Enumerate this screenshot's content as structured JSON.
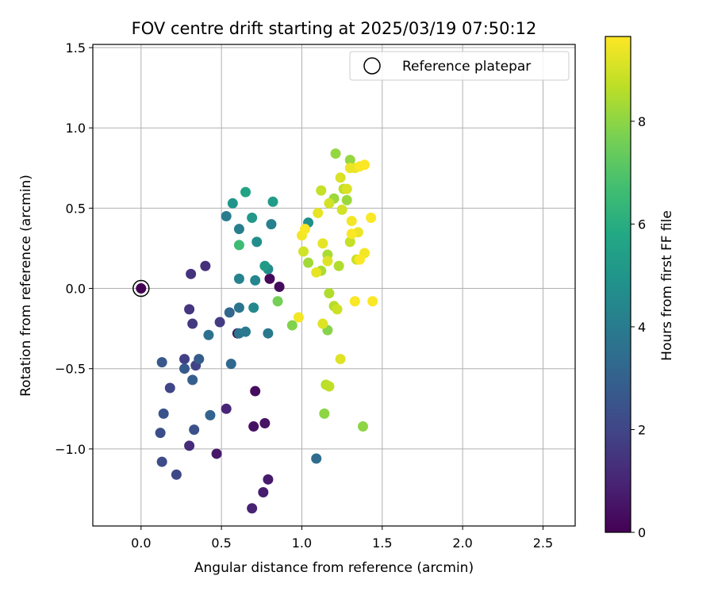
{
  "chart_data": {
    "type": "scatter",
    "title": "FOV centre drift starting at 2025/03/19 07:50:12",
    "xlabel": "Angular distance from reference (arcmin)",
    "ylabel": "Rotation from reference (arcmin)",
    "xlim": [
      -0.3,
      2.7
    ],
    "ylim": [
      -1.48,
      1.52
    ],
    "xticks": [
      0.0,
      0.5,
      1.0,
      1.5,
      2.0,
      2.5
    ],
    "xtick_labels": [
      "0.0",
      "0.5",
      "1.0",
      "1.5",
      "2.0",
      "2.5"
    ],
    "yticks": [
      -1.0,
      -0.5,
      0.0,
      0.5,
      1.0,
      1.5
    ],
    "ytick_labels": [
      "−1.0",
      "−0.5",
      "0.0",
      "0.5",
      "1.0",
      "1.5"
    ],
    "grid": true,
    "colormap": "viridis",
    "colorbar": {
      "label": "Hours from first FF file",
      "range": [
        0,
        9.65
      ],
      "ticks": [
        0,
        2,
        4,
        6,
        8
      ],
      "tick_labels": [
        "0",
        "2",
        "4",
        "6",
        "8"
      ]
    },
    "legend": {
      "position": "top-right",
      "entries": [
        {
          "label": "Reference platepar",
          "marker": "open-circle"
        }
      ]
    },
    "reference_point": {
      "x": 0.0,
      "y": 0.0
    },
    "points": [
      {
        "x": 0.8,
        "y": 0.06,
        "c": 0.2
      },
      {
        "x": 0.86,
        "y": 0.01,
        "c": 0.3
      },
      {
        "x": 0.6,
        "y": -0.28,
        "c": 0.4
      },
      {
        "x": 0.71,
        "y": -0.64,
        "c": 0.3
      },
      {
        "x": 0.7,
        "y": -0.86,
        "c": 0.4
      },
      {
        "x": 0.77,
        "y": -0.84,
        "c": 0.5
      },
      {
        "x": 0.47,
        "y": -1.03,
        "c": 0.6
      },
      {
        "x": 0.79,
        "y": -1.19,
        "c": 0.7
      },
      {
        "x": 0.76,
        "y": -1.27,
        "c": 0.8
      },
      {
        "x": 0.69,
        "y": -1.37,
        "c": 0.9
      },
      {
        "x": 0.53,
        "y": -0.75,
        "c": 1.0
      },
      {
        "x": 0.3,
        "y": -0.98,
        "c": 1.2
      },
      {
        "x": 0.4,
        "y": 0.14,
        "c": 1.3
      },
      {
        "x": 0.31,
        "y": 0.09,
        "c": 1.4
      },
      {
        "x": 0.3,
        "y": -0.13,
        "c": 1.5
      },
      {
        "x": 0.32,
        "y": -0.22,
        "c": 1.6
      },
      {
        "x": 0.49,
        "y": -0.21,
        "c": 1.7
      },
      {
        "x": 0.27,
        "y": -0.44,
        "c": 1.8
      },
      {
        "x": 0.34,
        "y": -0.48,
        "c": 1.9
      },
      {
        "x": 0.18,
        "y": -0.62,
        "c": 2.0
      },
      {
        "x": 0.22,
        "y": -1.16,
        "c": 2.1
      },
      {
        "x": 0.13,
        "y": -1.08,
        "c": 2.2
      },
      {
        "x": 0.12,
        "y": -0.9,
        "c": 2.3
      },
      {
        "x": 0.33,
        "y": -0.88,
        "c": 2.4
      },
      {
        "x": 0.14,
        "y": -0.78,
        "c": 2.5
      },
      {
        "x": 0.13,
        "y": -0.46,
        "c": 2.6
      },
      {
        "x": 0.27,
        "y": -0.5,
        "c": 2.7
      },
      {
        "x": 0.36,
        "y": -0.44,
        "c": 2.8
      },
      {
        "x": 0.32,
        "y": -0.57,
        "c": 2.9
      },
      {
        "x": 0.43,
        "y": -0.79,
        "c": 3.1
      },
      {
        "x": 0.55,
        "y": -0.15,
        "c": 3.2
      },
      {
        "x": 0.56,
        "y": -0.47,
        "c": 3.3
      },
      {
        "x": 1.09,
        "y": -1.06,
        "c": 3.4
      },
      {
        "x": 0.42,
        "y": -0.29,
        "c": 3.6
      },
      {
        "x": 0.61,
        "y": -0.12,
        "c": 3.7
      },
      {
        "x": 0.61,
        "y": -0.28,
        "c": 3.8
      },
      {
        "x": 0.65,
        "y": -0.27,
        "c": 3.9
      },
      {
        "x": 0.79,
        "y": -0.28,
        "c": 3.9
      },
      {
        "x": 0.53,
        "y": 0.45,
        "c": 4.0
      },
      {
        "x": 0.61,
        "y": 0.37,
        "c": 4.1
      },
      {
        "x": 0.81,
        "y": 0.4,
        "c": 4.2
      },
      {
        "x": 0.61,
        "y": 0.06,
        "c": 4.3
      },
      {
        "x": 0.71,
        "y": 0.05,
        "c": 4.4
      },
      {
        "x": 0.7,
        "y": -0.12,
        "c": 4.5
      },
      {
        "x": 0.79,
        "y": 0.12,
        "c": 4.6
      },
      {
        "x": 0.72,
        "y": 0.29,
        "c": 4.7
      },
      {
        "x": 1.04,
        "y": 0.41,
        "c": 4.8
      },
      {
        "x": 0.57,
        "y": 0.53,
        "c": 5.0
      },
      {
        "x": 0.69,
        "y": 0.44,
        "c": 5.1
      },
      {
        "x": 0.77,
        "y": 0.14,
        "c": 5.2
      },
      {
        "x": 0.82,
        "y": 0.54,
        "c": 5.3
      },
      {
        "x": 0.65,
        "y": 0.6,
        "c": 5.6
      },
      {
        "x": 0.61,
        "y": 0.27,
        "c": 6.6
      },
      {
        "x": 0.85,
        "y": -0.08,
        "c": 7.6
      },
      {
        "x": 0.94,
        "y": -0.23,
        "c": 7.8
      },
      {
        "x": 1.16,
        "y": -0.26,
        "c": 7.9
      },
      {
        "x": 1.14,
        "y": -0.78,
        "c": 8.0
      },
      {
        "x": 1.38,
        "y": -0.86,
        "c": 8.0
      },
      {
        "x": 1.21,
        "y": 0.84,
        "c": 8.1
      },
      {
        "x": 1.3,
        "y": 0.8,
        "c": 8.1
      },
      {
        "x": 1.2,
        "y": 0.56,
        "c": 8.2
      },
      {
        "x": 1.28,
        "y": 0.55,
        "c": 8.2
      },
      {
        "x": 1.04,
        "y": 0.16,
        "c": 8.3
      },
      {
        "x": 1.12,
        "y": 0.11,
        "c": 8.4
      },
      {
        "x": 1.16,
        "y": 0.21,
        "c": 8.4
      },
      {
        "x": 1.23,
        "y": 0.14,
        "c": 8.5
      },
      {
        "x": 1.17,
        "y": -0.03,
        "c": 8.5
      },
      {
        "x": 1.2,
        "y": -0.11,
        "c": 8.6
      },
      {
        "x": 1.15,
        "y": -0.6,
        "c": 8.6
      },
      {
        "x": 1.17,
        "y": -0.61,
        "c": 8.7
      },
      {
        "x": 1.26,
        "y": 0.62,
        "c": 8.7
      },
      {
        "x": 1.12,
        "y": 0.61,
        "c": 8.8
      },
      {
        "x": 1.3,
        "y": 0.29,
        "c": 8.8
      },
      {
        "x": 1.34,
        "y": 0.18,
        "c": 8.9
      },
      {
        "x": 1.22,
        "y": -0.13,
        "c": 8.9
      },
      {
        "x": 1.01,
        "y": 0.23,
        "c": 9.0
      },
      {
        "x": 1.17,
        "y": 0.53,
        "c": 9.0
      },
      {
        "x": 1.25,
        "y": 0.49,
        "c": 9.0
      },
      {
        "x": 1.24,
        "y": 0.69,
        "c": 9.1
      },
      {
        "x": 1.28,
        "y": 0.62,
        "c": 9.1
      },
      {
        "x": 1.16,
        "y": 0.17,
        "c": 9.2
      },
      {
        "x": 1.13,
        "y": -0.22,
        "c": 9.2
      },
      {
        "x": 1.24,
        "y": -0.44,
        "c": 9.2
      },
      {
        "x": 1.09,
        "y": 0.1,
        "c": 9.3
      },
      {
        "x": 1.1,
        "y": 0.47,
        "c": 9.3
      },
      {
        "x": 1.13,
        "y": 0.28,
        "c": 9.3
      },
      {
        "x": 1.3,
        "y": 0.75,
        "c": 9.4
      },
      {
        "x": 1.33,
        "y": 0.75,
        "c": 9.4
      },
      {
        "x": 1.35,
        "y": 0.35,
        "c": 9.4
      },
      {
        "x": 1.39,
        "y": 0.22,
        "c": 9.5
      },
      {
        "x": 1.0,
        "y": 0.33,
        "c": 9.5
      },
      {
        "x": 0.98,
        "y": -0.18,
        "c": 9.5
      },
      {
        "x": 1.31,
        "y": 0.42,
        "c": 9.5
      },
      {
        "x": 1.31,
        "y": 0.34,
        "c": 9.6
      },
      {
        "x": 1.33,
        "y": -0.08,
        "c": 9.6
      },
      {
        "x": 1.36,
        "y": 0.18,
        "c": 9.6
      },
      {
        "x": 1.43,
        "y": 0.44,
        "c": 9.6
      },
      {
        "x": 1.44,
        "y": -0.08,
        "c": 9.6
      },
      {
        "x": 1.36,
        "y": 0.76,
        "c": 9.6
      },
      {
        "x": 1.39,
        "y": 0.77,
        "c": 9.6
      },
      {
        "x": 1.02,
        "y": 0.37,
        "c": 9.6
      }
    ]
  }
}
